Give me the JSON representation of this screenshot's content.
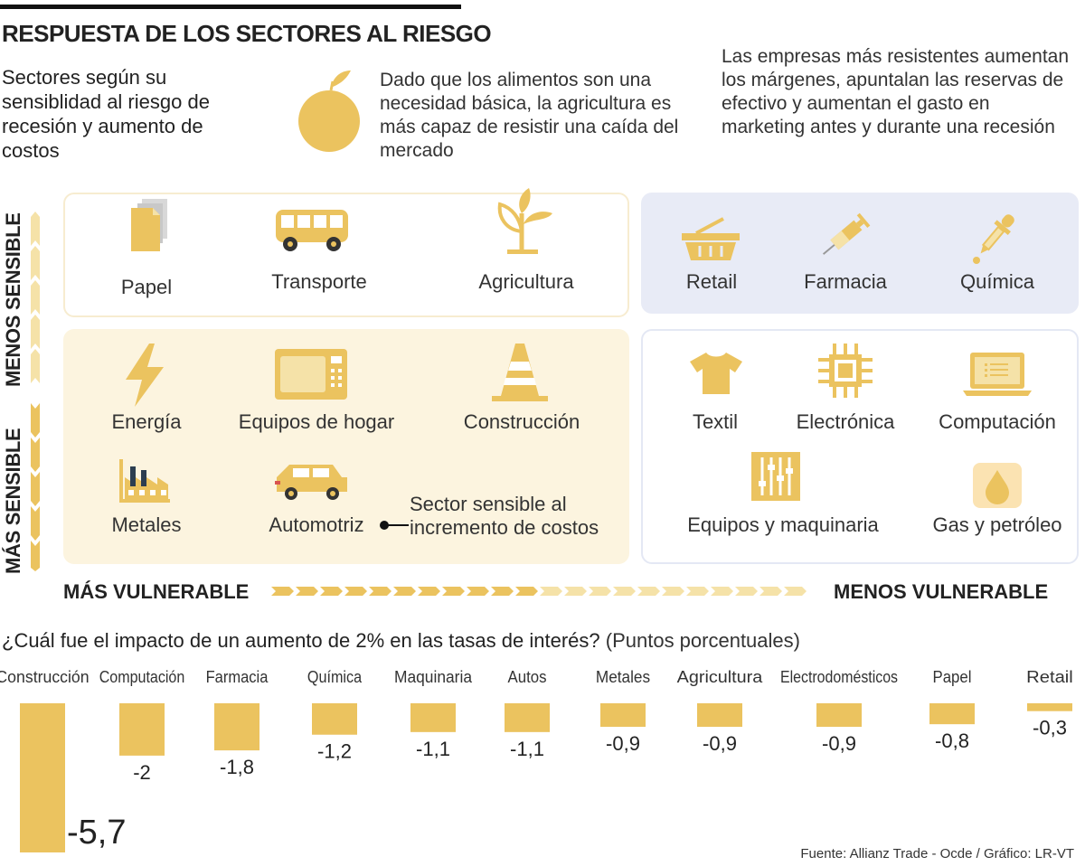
{
  "header": {
    "title": "RESPUESTA DE LOS SECTORES AL RIESGO",
    "intro": "Sectores según su sensiblidad al riesgo de recesión y aumento de costos",
    "note_agriculture": "Dado que los alimentos son una necesidad básica, la agricultura es más capaz de resistir una caída del mercado",
    "note_resilient": "Las empresas más resistentes aumentan los márgenes, apuntalan las reservas de efectivo y aumentan el gasto en marketing antes y durante una recesión"
  },
  "axes": {
    "less_sensitive": "MENOS SENSIBLE",
    "more_sensitive": "MÁS SENSIBLE",
    "more_vulnerable": "MÁS VULNERABLE",
    "less_vulnerable": "MENOS VULNERABLE"
  },
  "sectors": {
    "papel": "Papel",
    "transporte": "Transporte",
    "agricultura": "Agricultura",
    "retail": "Retail",
    "farmacia": "Farmacia",
    "quimica": "Química",
    "energia": "Energía",
    "equipos_hogar": "Equipos de hogar",
    "construccion": "Construcción",
    "metales": "Metales",
    "automotriz": "Automotriz",
    "textil": "Textil",
    "electronica": "Electrónica",
    "computacion": "Computación",
    "equipos_maquinaria": "Equipos y maquinaria",
    "gas_petroleo": "Gas y petróleo"
  },
  "cost_note": "Sector sensible al incremento de costos",
  "colors": {
    "accent": "#ebc35f",
    "light_accent": "#f5e2a8",
    "panel_warm": "#fcf4df",
    "panel_cool": "#e8ebf6"
  },
  "icons": [
    "paper-icon",
    "bus-icon",
    "plant-icon",
    "basket-icon",
    "syringe-icon",
    "dropper-icon",
    "lightning-icon",
    "microwave-icon",
    "cone-icon",
    "factory-icon",
    "car-icon",
    "shirt-icon",
    "chip-icon",
    "laptop-icon",
    "equalizer-icon",
    "oil-drop-icon",
    "orange-icon"
  ],
  "chart_title": "¿Cuál fue el impacto de un aumento de 2% en las tasas de interés?",
  "chart_subtitle": "(Puntos porcentuales)",
  "chart_data": {
    "type": "bar",
    "categories": [
      "Construcción",
      "Computación",
      "Farmacia",
      "Química",
      "Maquinaria",
      "Autos",
      "Metales",
      "Agricultura",
      "Electrodomésticos",
      "Papel",
      "Retail"
    ],
    "values": [
      -5.7,
      -2,
      -1.8,
      -1.2,
      -1.1,
      -1.1,
      -0.9,
      -0.9,
      -0.9,
      -0.8,
      -0.3
    ],
    "value_labels": [
      "-5,7",
      "-2",
      "-1,8",
      "-1,2",
      "-1,1",
      "-1,1",
      "-0,9",
      "-0,9",
      "-0,9",
      "-0,8",
      "-0,3"
    ],
    "ylim": [
      -5.7,
      0
    ]
  },
  "source": "Fuente: Allianz Trade - Ocde  / Gráfico: LR-VT"
}
